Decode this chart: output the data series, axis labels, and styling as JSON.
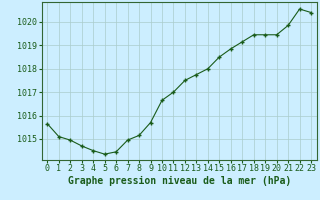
{
  "x": [
    0,
    1,
    2,
    3,
    4,
    5,
    6,
    7,
    8,
    9,
    10,
    11,
    12,
    13,
    14,
    15,
    16,
    17,
    18,
    19,
    20,
    21,
    22,
    23
  ],
  "y": [
    1015.65,
    1015.1,
    1014.95,
    1014.7,
    1014.5,
    1014.35,
    1014.45,
    1014.95,
    1015.15,
    1015.7,
    1016.65,
    1017.0,
    1017.5,
    1017.75,
    1018.0,
    1018.5,
    1018.85,
    1019.15,
    1019.45,
    1019.45,
    1019.45,
    1019.85,
    1020.55,
    1020.4
  ],
  "line_color": "#1a5c1a",
  "marker": "+",
  "marker_size": 3.5,
  "marker_linewidth": 1.0,
  "background_color": "#cceeff",
  "grid_color": "#aacccc",
  "ylabel_ticks": [
    1015,
    1016,
    1017,
    1018,
    1019,
    1020
  ],
  "xlabel": "Graphe pression niveau de la mer (hPa)",
  "ylim": [
    1014.1,
    1020.85
  ],
  "xlim": [
    -0.5,
    23.5
  ],
  "xlabel_fontsize": 7,
  "tick_fontsize": 6,
  "tick_color": "#1a5c1a",
  "label_color": "#1a5c1a",
  "spine_color": "#336633",
  "bottom_bar_color": "#336633",
  "bottom_text_color": "#99ff99"
}
